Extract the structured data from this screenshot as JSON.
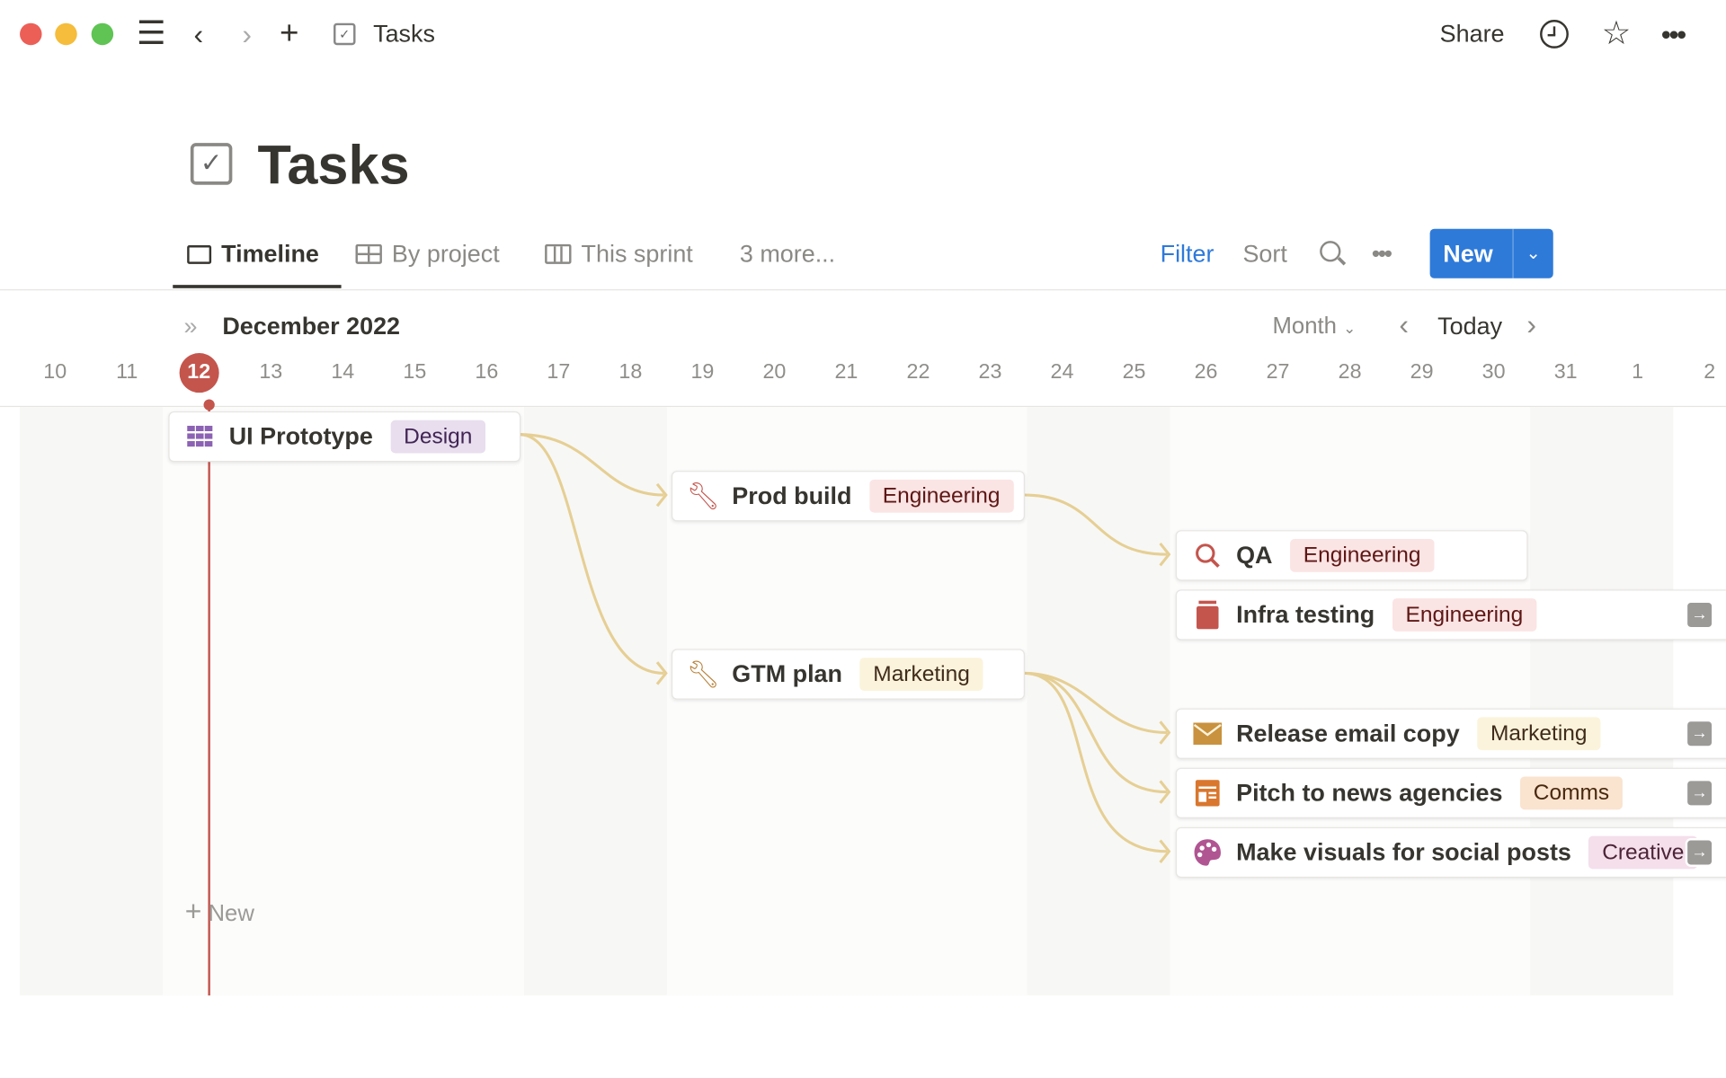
{
  "titlebar": {
    "page": "Tasks",
    "share": "Share"
  },
  "page": {
    "title": "Tasks"
  },
  "tabs": [
    {
      "label": "Timeline",
      "active": true
    },
    {
      "label": "By project"
    },
    {
      "label": "This sprint"
    },
    {
      "label": "3 more..."
    }
  ],
  "toolbar": {
    "filter": "Filter",
    "sort": "Sort",
    "new": "New"
  },
  "timeline": {
    "month": "December 2022",
    "scale": "Month",
    "today": "Today",
    "today_day": "12",
    "days": [
      "10",
      "11",
      "12",
      "13",
      "14",
      "15",
      "16",
      "17",
      "18",
      "19",
      "20",
      "21",
      "22",
      "23",
      "24",
      "25",
      "26",
      "27",
      "28",
      "29",
      "30",
      "31",
      "1",
      "2"
    ],
    "new_label": "New"
  },
  "tasks": [
    {
      "name": "UI Prototype",
      "tag": "Design",
      "icon": "grid-icon"
    },
    {
      "name": "Prod build",
      "tag": "Engineering",
      "icon": "wrench-icon"
    },
    {
      "name": "GTM plan",
      "tag": "Marketing",
      "icon": "wrench-icon"
    },
    {
      "name": "QA",
      "tag": "Engineering",
      "icon": "magnifier-icon"
    },
    {
      "name": "Infra testing",
      "tag": "Engineering",
      "icon": "database-icon"
    },
    {
      "name": "Release email copy",
      "tag": "Marketing",
      "icon": "envelope-icon"
    },
    {
      "name": "Pitch to news agencies",
      "tag": "Comms",
      "icon": "newspaper-icon"
    },
    {
      "name": "Make visuals for social posts",
      "tag": "Creative",
      "icon": "palette-icon"
    }
  ],
  "colors": {
    "accent": "#2e7ad9",
    "today": "#c4554d",
    "connector": "#e6cf94",
    "design": "#e8deee",
    "engineering": "#fbe4e4",
    "marketing": "#fbf3db",
    "comms": "#fae3cf",
    "creative": "#f4dfeb"
  }
}
